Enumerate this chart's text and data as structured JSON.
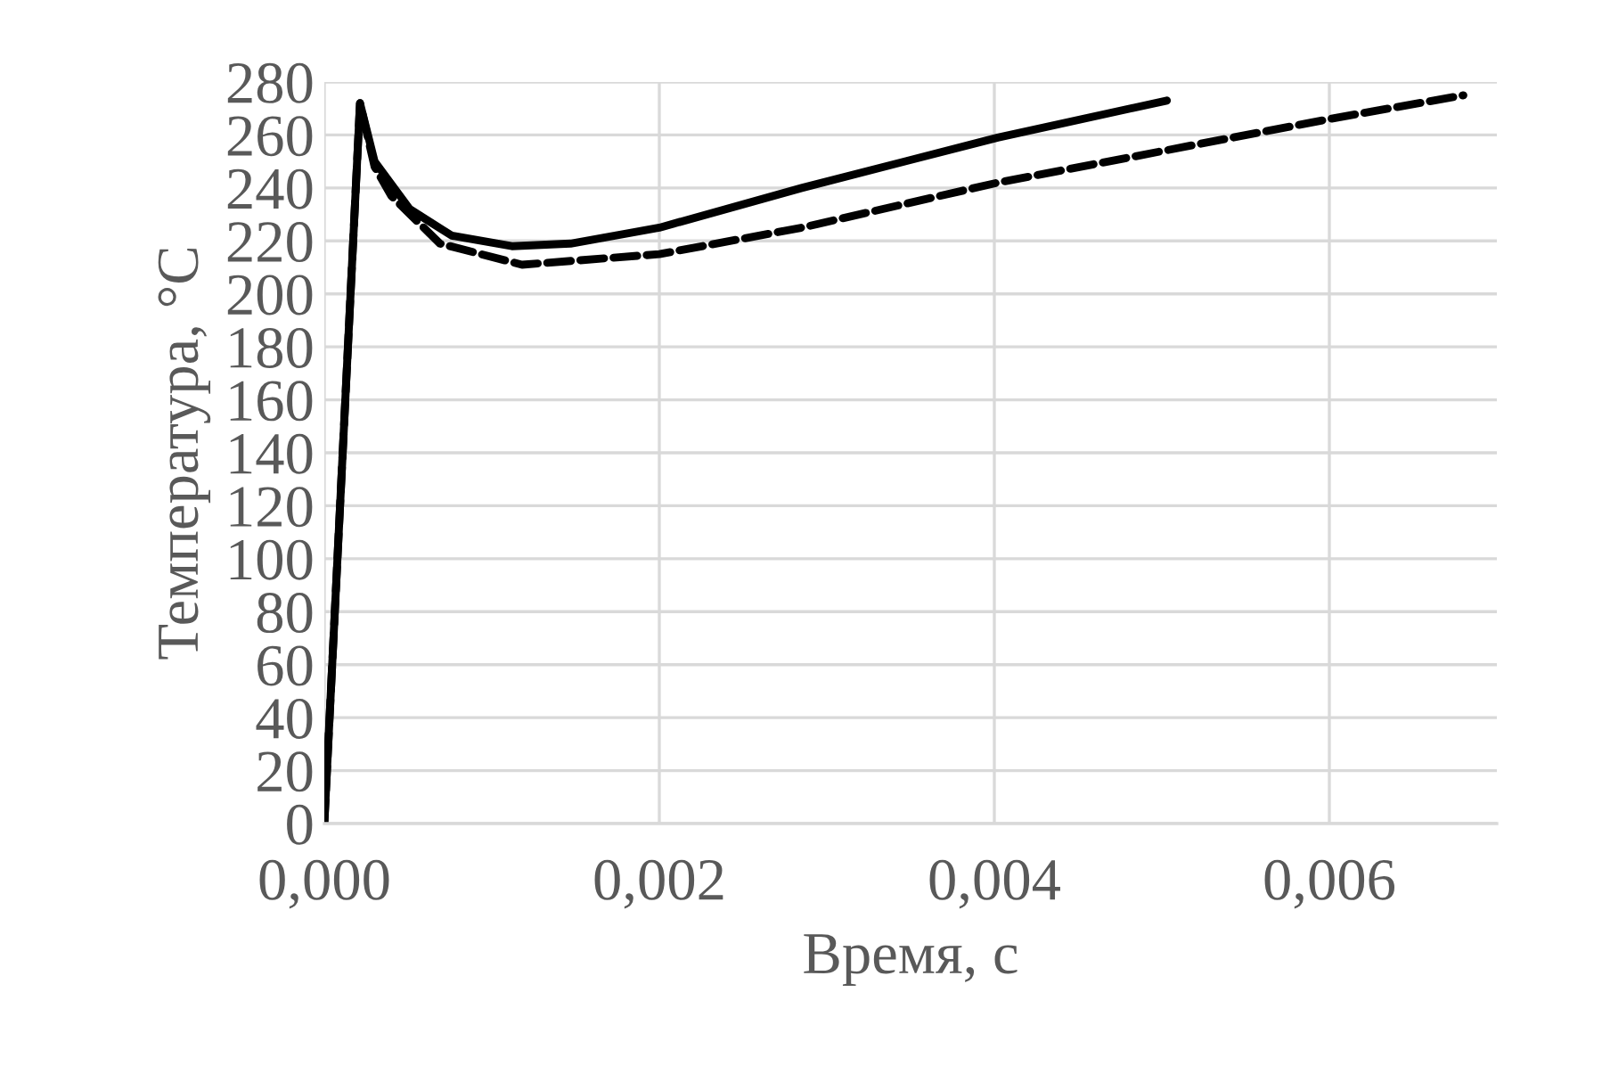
{
  "chart_data": {
    "type": "line",
    "xlabel": "Время, с",
    "ylabel": "Температура, °C",
    "xlim": [
      0,
      0.007
    ],
    "ylim": [
      0,
      280
    ],
    "xticks": [
      {
        "value": 0,
        "label": "0,000"
      },
      {
        "value": 0.002,
        "label": "0,002"
      },
      {
        "value": 0.004,
        "label": "0,004"
      },
      {
        "value": 0.006,
        "label": "0,006"
      }
    ],
    "yticks": [
      0,
      20,
      40,
      60,
      80,
      100,
      120,
      140,
      160,
      180,
      200,
      220,
      240,
      260,
      280
    ],
    "grid": true,
    "marker": "none",
    "series": [
      {
        "color": "#000000",
        "line_style": "solid",
        "x": [
          0,
          0.000213,
          0.0003,
          0.00051,
          0.00076,
          0.00112,
          0.00147,
          0.002,
          0.00285,
          0.00402,
          0.00503
        ],
        "values": [
          0,
          272,
          250,
          232,
          222,
          218,
          219,
          225,
          240,
          259,
          273
        ]
      },
      {
        "color": "#000000",
        "line_style": "dashed",
        "x": [
          0,
          0.000213,
          0.0003,
          0.0004,
          0.00069,
          0.00118,
          0.002,
          0.00285,
          0.00402,
          0.006,
          0.0068
        ],
        "values": [
          0,
          272,
          248,
          237,
          219,
          211,
          215,
          225,
          242,
          266,
          275
        ]
      }
    ]
  }
}
